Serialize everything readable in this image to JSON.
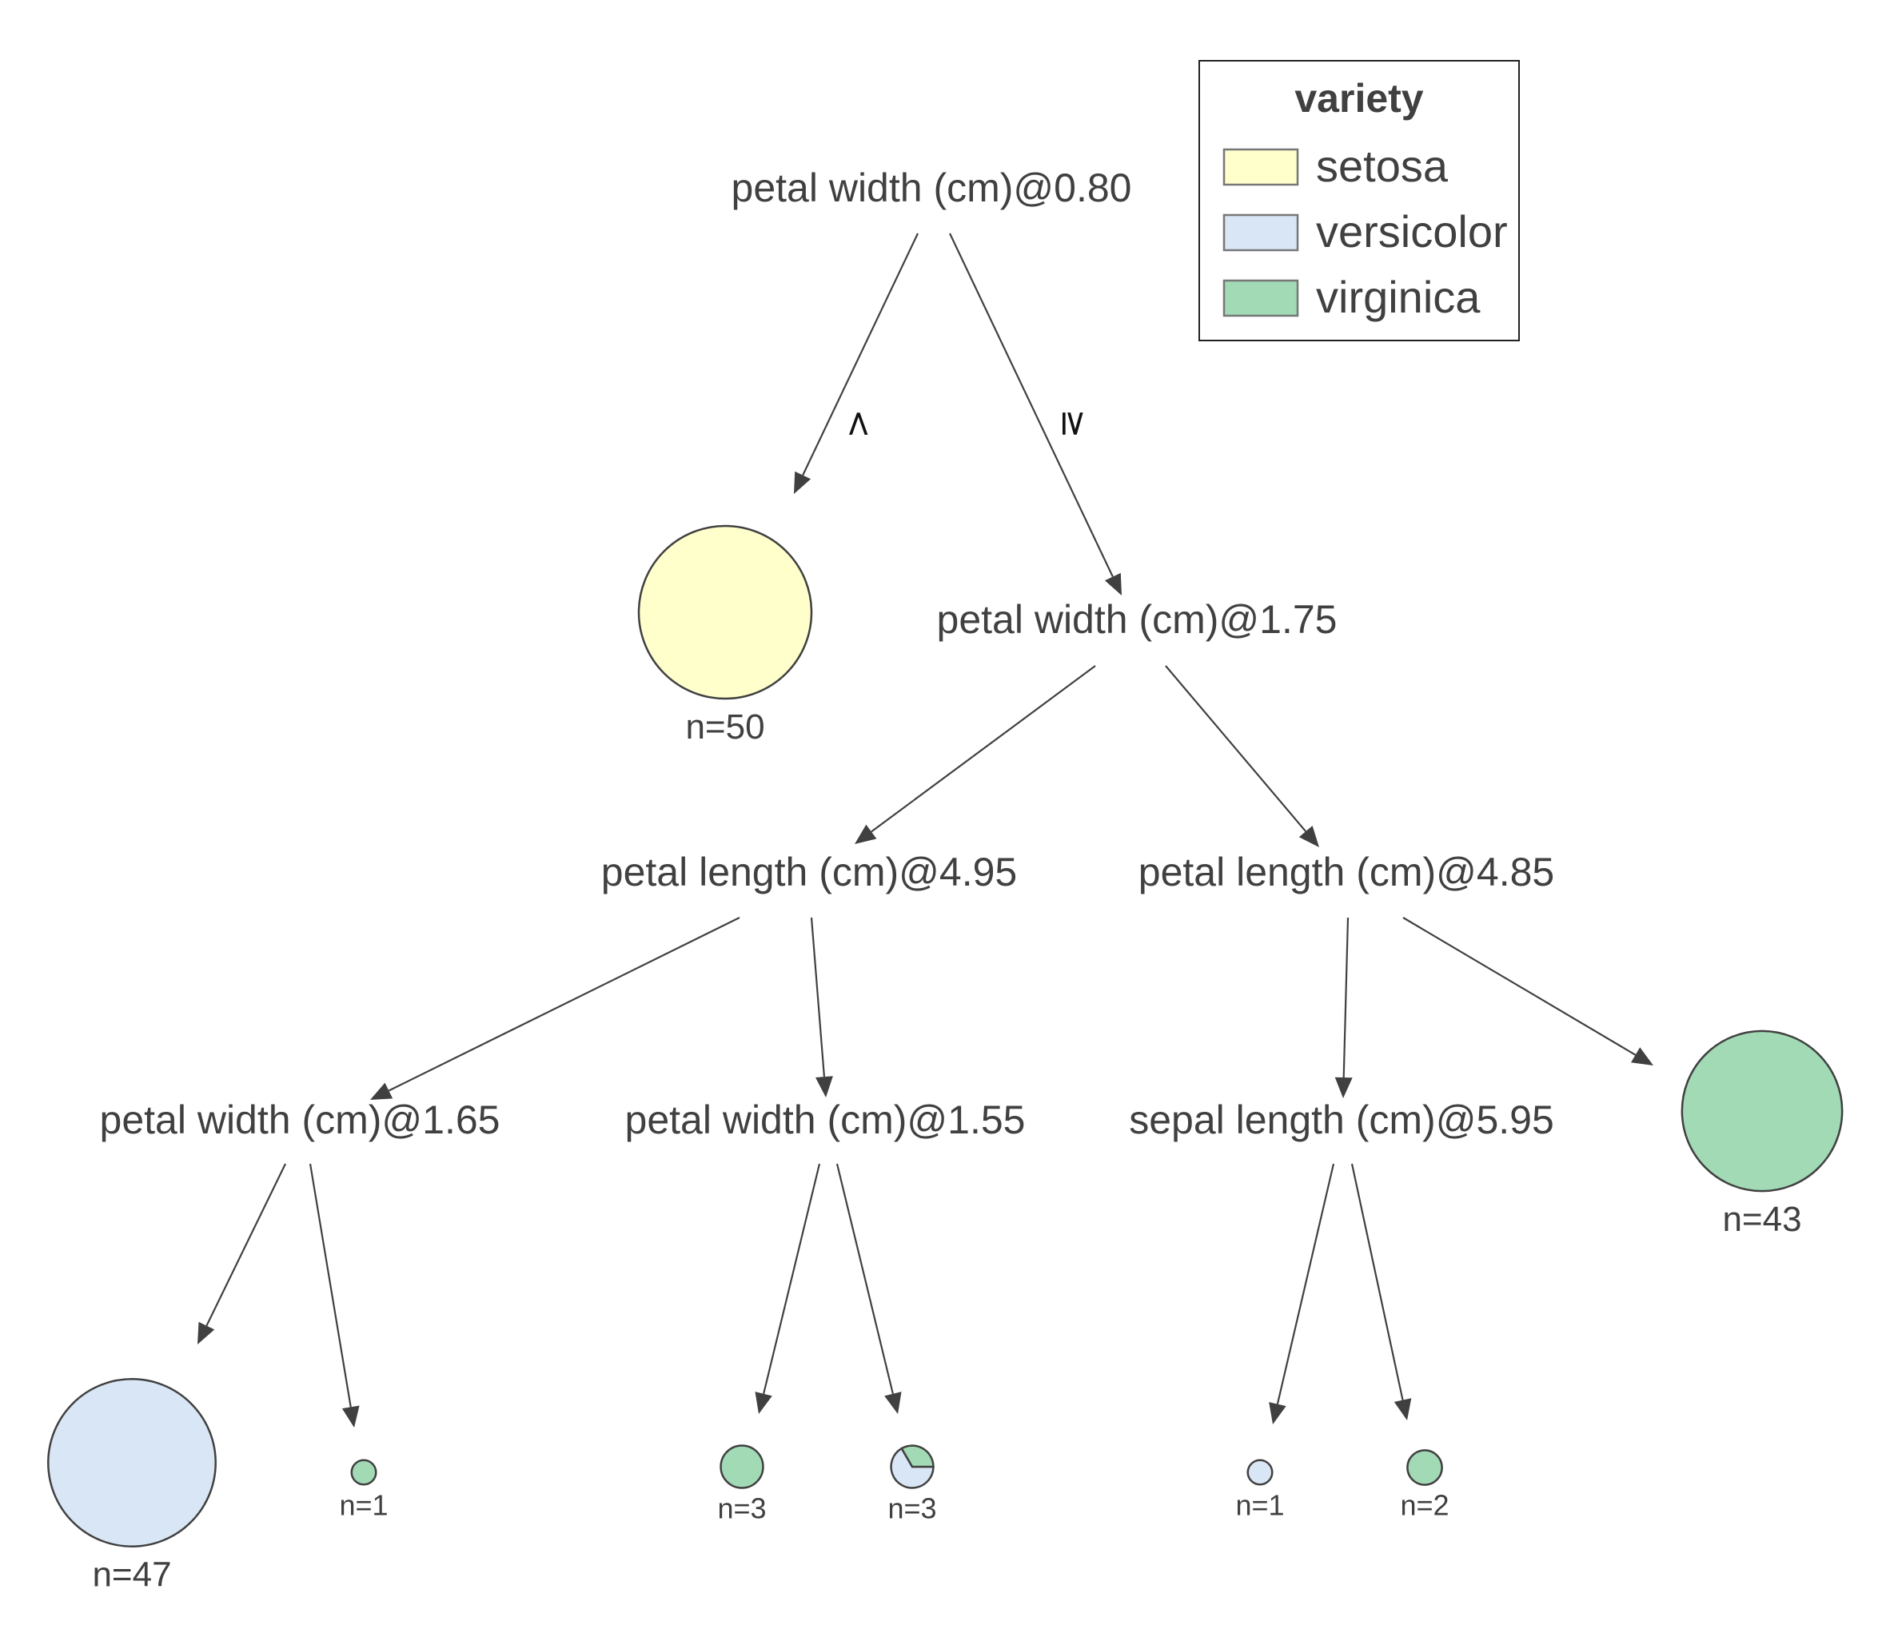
{
  "legend": {
    "title": "variety",
    "items": [
      {
        "label": "setosa",
        "color": "#FFFFCC"
      },
      {
        "label": "versicolor",
        "color": "#D9E6F5"
      },
      {
        "label": "virginica",
        "color": "#A1DAB4"
      }
    ]
  },
  "splits": [
    {
      "id": "n0",
      "label": "petal width (cm)@0.80"
    },
    {
      "id": "n2",
      "label": "petal width (cm)@1.75"
    },
    {
      "id": "n3",
      "label": "petal length (cm)@4.95"
    },
    {
      "id": "n4",
      "label": "petal length (cm)@4.85"
    },
    {
      "id": "n5",
      "label": "petal width (cm)@1.65"
    },
    {
      "id": "n6",
      "label": "petal width (cm)@1.55"
    },
    {
      "id": "n7",
      "label": "sepal length (cm)@5.95"
    }
  ],
  "leaves": [
    {
      "id": "l1",
      "label": "n=50",
      "counts": {
        "setosa": 50,
        "versicolor": 0,
        "virginica": 0
      }
    },
    {
      "id": "l2",
      "label": "n=43",
      "counts": {
        "setosa": 0,
        "versicolor": 0,
        "virginica": 43
      }
    },
    {
      "id": "l3",
      "label": "n=47",
      "counts": {
        "setosa": 0,
        "versicolor": 47,
        "virginica": 0
      }
    },
    {
      "id": "l4",
      "label": "n=1",
      "counts": {
        "setosa": 0,
        "versicolor": 0,
        "virginica": 1
      }
    },
    {
      "id": "l5",
      "label": "n=3",
      "counts": {
        "setosa": 0,
        "versicolor": 0,
        "virginica": 3
      }
    },
    {
      "id": "l6",
      "label": "n=3",
      "counts": {
        "setosa": 0,
        "versicolor": 2,
        "virginica": 1
      }
    },
    {
      "id": "l7",
      "label": "n=1",
      "counts": {
        "setosa": 0,
        "versicolor": 1,
        "virginica": 0
      }
    },
    {
      "id": "l8",
      "label": "n=2",
      "counts": {
        "setosa": 0,
        "versicolor": 0,
        "virginica": 2
      }
    }
  ],
  "edges": [
    {
      "from": "n0",
      "to": "l1",
      "label": "<"
    },
    {
      "from": "n0",
      "to": "n2",
      "label": "≥"
    },
    {
      "from": "n2",
      "to": "n3",
      "label": ""
    },
    {
      "from": "n2",
      "to": "n4",
      "label": ""
    },
    {
      "from": "n3",
      "to": "n5",
      "label": ""
    },
    {
      "from": "n3",
      "to": "n6",
      "label": ""
    },
    {
      "from": "n4",
      "to": "n7",
      "label": ""
    },
    {
      "from": "n4",
      "to": "l2",
      "label": ""
    },
    {
      "from": "n5",
      "to": "l3",
      "label": ""
    },
    {
      "from": "n5",
      "to": "l4",
      "label": ""
    },
    {
      "from": "n6",
      "to": "l5",
      "label": ""
    },
    {
      "from": "n6",
      "to": "l6",
      "label": ""
    },
    {
      "from": "n7",
      "to": "l7",
      "label": ""
    },
    {
      "from": "n7",
      "to": "l8",
      "label": ""
    }
  ]
}
